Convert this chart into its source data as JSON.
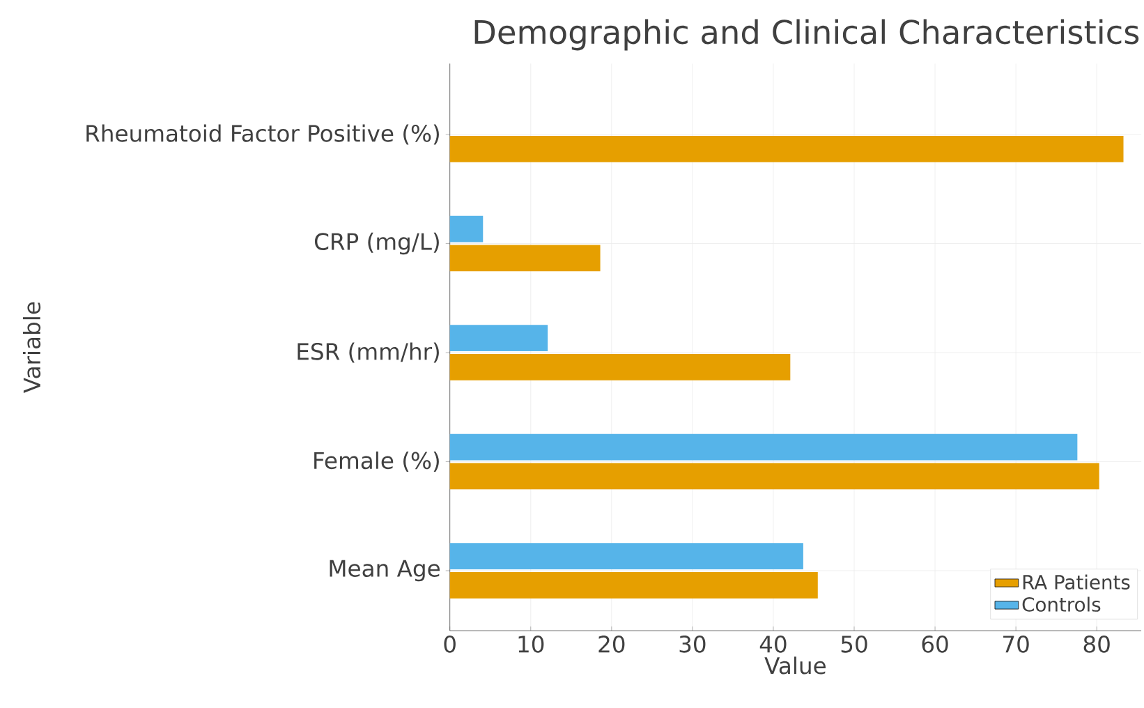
{
  "chart_data": {
    "type": "bar",
    "orientation": "horizontal",
    "title": "Demographic and Clinical Characteristics",
    "xlabel": "Value",
    "ylabel": "Variable",
    "categories": [
      "Rheumatoid Factor Positive (%)",
      "CRP (mg/L)",
      "ESR (mm/hr)",
      "Female (%)",
      "Mean Age"
    ],
    "series": [
      {
        "name": "RA Patients",
        "color": "#e69f00",
        "values": [
          83.3,
          18.6,
          42.1,
          80.3,
          45.5
        ]
      },
      {
        "name": "Controls",
        "color": "#56b4e9",
        "values": [
          null,
          4.1,
          12.1,
          77.6,
          43.7
        ]
      }
    ],
    "xlim": [
      0,
      85.5
    ],
    "xticks": [
      0,
      10,
      20,
      30,
      40,
      50,
      60,
      70,
      80
    ],
    "grid": true,
    "legend": "bottom right"
  }
}
